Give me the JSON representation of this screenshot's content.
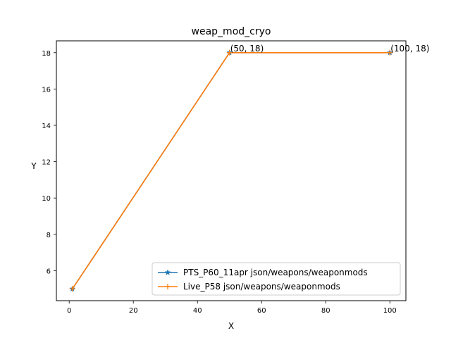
{
  "chart_data": {
    "type": "line",
    "title": "weap_mod_cryo",
    "xlabel": "X",
    "ylabel": "Y",
    "xlim": [
      -4,
      105
    ],
    "ylim": [
      4.35,
      18.65
    ],
    "xticks": [
      0,
      20,
      40,
      60,
      80,
      100
    ],
    "yticks": [
      6,
      8,
      10,
      12,
      14,
      16,
      18
    ],
    "grid": false,
    "legend_position": "lower-right",
    "series": [
      {
        "name": "PTS_P60_11apr json/weapons/weaponmods",
        "color": "#1f77b4",
        "marker": "star",
        "x": [
          1,
          50,
          100
        ],
        "y": [
          5,
          18,
          18
        ]
      },
      {
        "name": "Live_P58 json/weapons/weaponmods",
        "color": "#ff7f0e",
        "marker": "plus",
        "x": [
          1,
          50,
          100
        ],
        "y": [
          5,
          18,
          18
        ]
      }
    ],
    "annotations": [
      {
        "text": "(50, 18)",
        "x": 50,
        "y": 18
      },
      {
        "text": "(100, 18)",
        "x": 100,
        "y": 18
      }
    ]
  }
}
